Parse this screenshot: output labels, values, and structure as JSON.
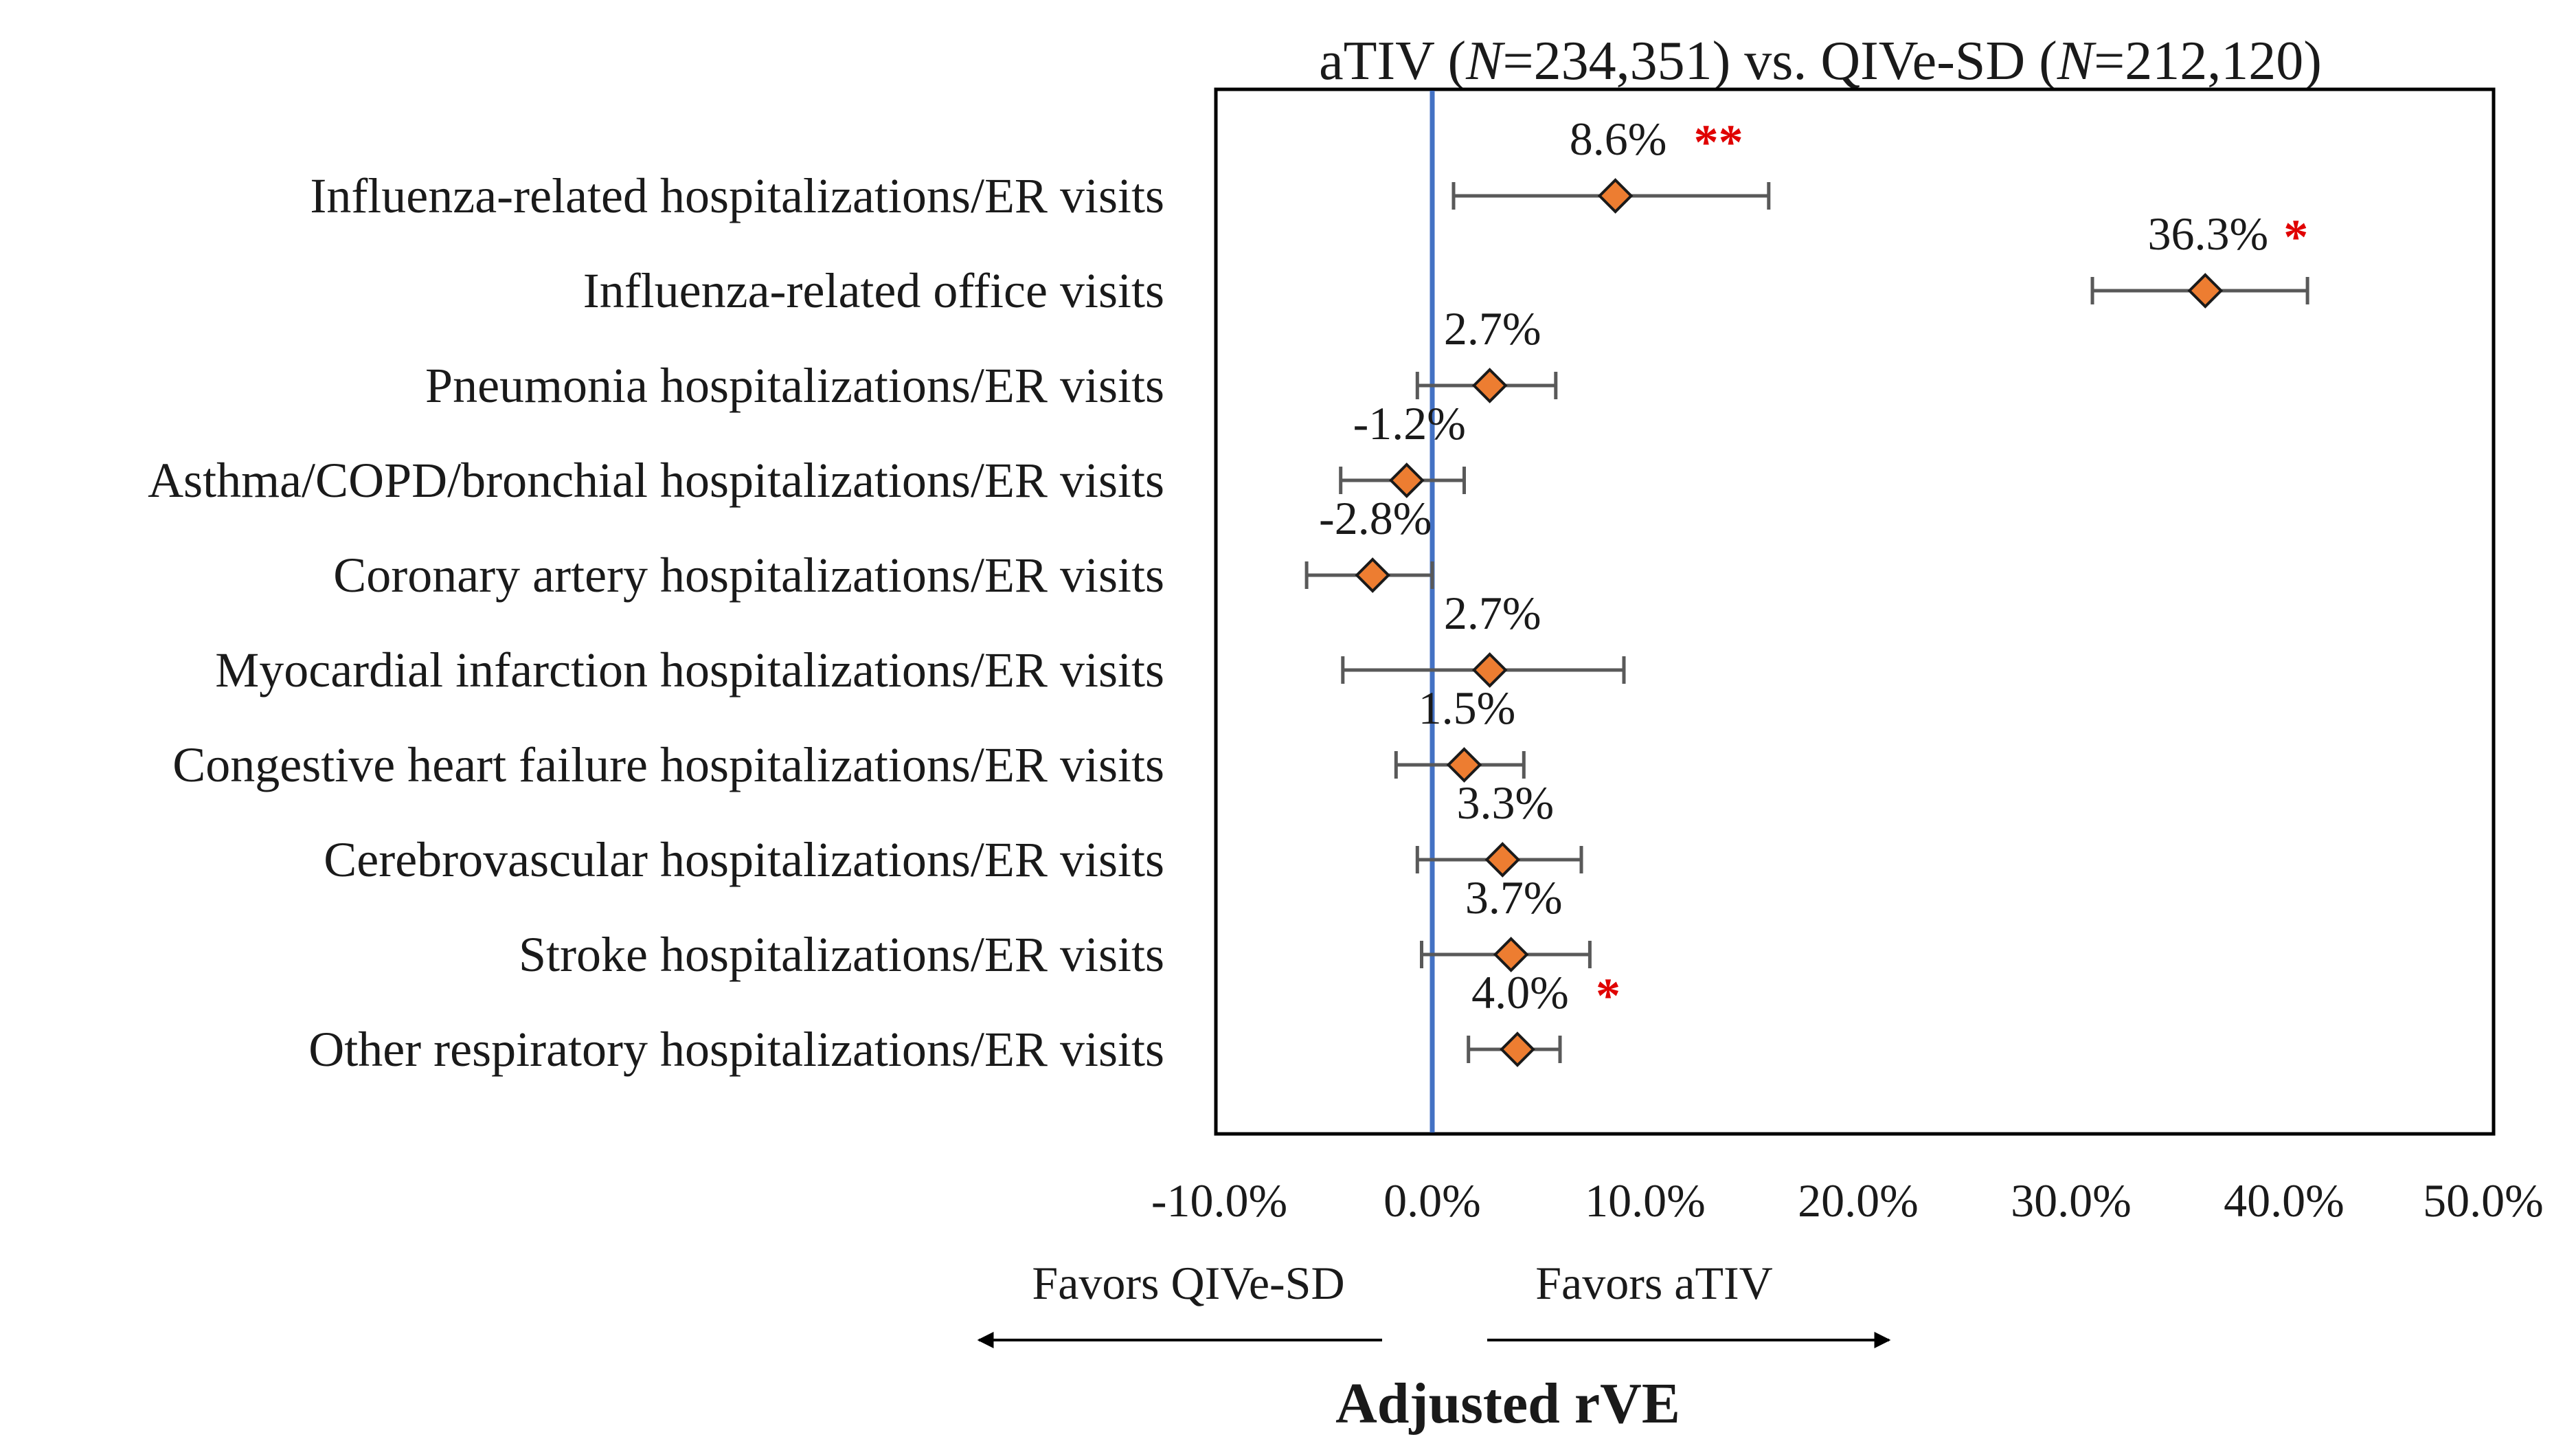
{
  "chart_data": {
    "type": "forest",
    "title": {
      "prefix": "aTIV (",
      "n_italic_1": "N",
      "n_value_1": "=234,351) vs. QIVe-SD (",
      "n_italic_2": "N",
      "n_value_2": "=212,120)"
    },
    "xlabel": "Adjusted rVE",
    "xlim": [
      -10,
      50
    ],
    "xticks": [
      -10,
      0,
      10,
      20,
      30,
      40,
      50
    ],
    "xtick_labels": [
      "-10.0%",
      "0.0%",
      "10.0%",
      "20.0%",
      "30.0%",
      "40.0%",
      "50.0%"
    ],
    "favors_left": "Favors QIVe-SD",
    "favors_right": "Favors aTIV",
    "reference_line": 0,
    "colors": {
      "marker_fill": "#ED7D31",
      "marker_stroke": "#1a1a1a",
      "error_bar": "#595959",
      "reference_line": "#4472C4",
      "significance": "#E00000"
    },
    "series": [
      {
        "name": "Influenza-related hospitalizations/ER visits",
        "value": 8.6,
        "lower": 1.0,
        "upper": 15.8,
        "label": "8.6%",
        "sig": "**"
      },
      {
        "name": "Influenza-related office visits",
        "value": 36.3,
        "lower": 31.0,
        "upper": 41.1,
        "label": "36.3%",
        "sig": "*"
      },
      {
        "name": "Pneumonia hospitalizations/ER visits",
        "value": 2.7,
        "lower": -0.7,
        "upper": 5.8,
        "label": "2.7%",
        "sig": ""
      },
      {
        "name": "Asthma/COPD/bronchial hospitalizations/ER visits",
        "value": -1.2,
        "lower": -4.3,
        "upper": 1.5,
        "label": "-1.2%",
        "sig": ""
      },
      {
        "name": "Coronary artery hospitalizations/ER visits",
        "value": -2.8,
        "lower": -5.9,
        "upper": 0.0,
        "label": "-2.8%",
        "sig": ""
      },
      {
        "name": "Myocardial infarction hospitalizations/ER visits",
        "value": 2.7,
        "lower": -4.2,
        "upper": 9.0,
        "label": "2.7%",
        "sig": ""
      },
      {
        "name": "Congestive heart failure hospitalizations/ER visits",
        "value": 1.5,
        "lower": -1.7,
        "upper": 4.3,
        "label": "1.5%",
        "sig": ""
      },
      {
        "name": "Cerebrovascular hospitalizations/ER visits",
        "value": 3.3,
        "lower": -0.7,
        "upper": 7.0,
        "label": "3.3%",
        "sig": ""
      },
      {
        "name": "Stroke hospitalizations/ER visits",
        "value": 3.7,
        "lower": -0.5,
        "upper": 7.4,
        "label": "3.7%",
        "sig": ""
      },
      {
        "name": "Other respiratory hospitalizations/ER visits",
        "value": 4.0,
        "lower": 1.7,
        "upper": 6.0,
        "label": "4.0%",
        "sig": "*"
      }
    ]
  }
}
